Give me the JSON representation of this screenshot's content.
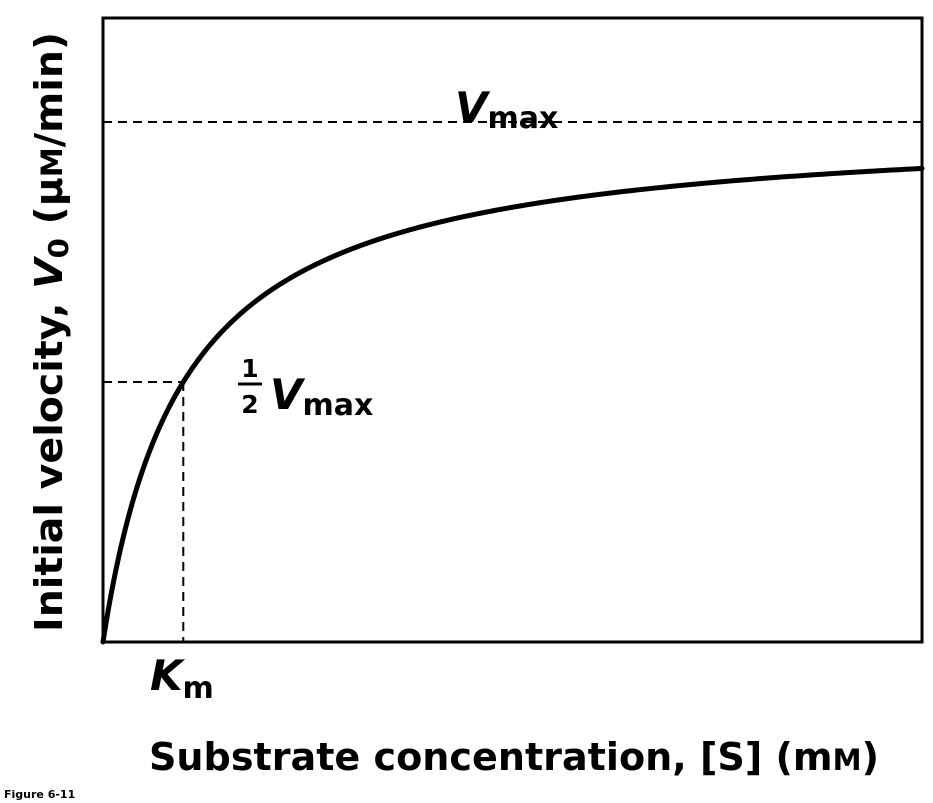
{
  "figure_label": "Figure 6-11",
  "chart_data": {
    "type": "line",
    "xlabel": "Substrate concentration, [S] (mM)",
    "xlabel_parts": {
      "text": "Substrate concentration, [S] (m",
      "smallcap": "M",
      "close": ")"
    },
    "ylabel": "Initial velocity, V0 (μM/min)",
    "ylabel_parts": {
      "prefix": "Initial velocity, ",
      "var": "V",
      "sub": "0",
      "unit": " (μ",
      "smallcap": "M",
      "close": "/min)"
    },
    "curve": "michaelis-menten",
    "vmax": 1,
    "km": 1,
    "xlim": [
      0,
      10.2
    ],
    "ylim": [
      0,
      1.2
    ],
    "grid": false,
    "annotations": {
      "vmax": {
        "var": "V",
        "sub": "max"
      },
      "half_vmax": {
        "num": "1",
        "den": "2",
        "var": "V",
        "sub": "max"
      },
      "km": {
        "var": "K",
        "sub": "m"
      }
    }
  }
}
